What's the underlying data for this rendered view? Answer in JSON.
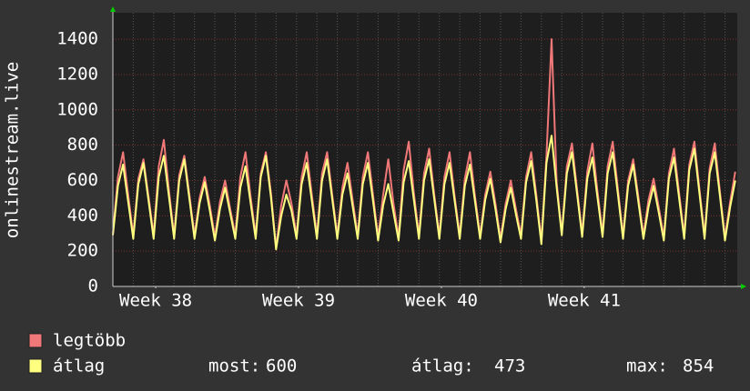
{
  "chart_data": {
    "type": "line",
    "y_label": "onlinestream.live",
    "xlim": [
      0,
      30.6
    ],
    "xticks": [
      {
        "value": 2.1,
        "label": "Week 38"
      },
      {
        "value": 9.1,
        "label": "Week 39"
      },
      {
        "value": 16.1,
        "label": "Week 40"
      },
      {
        "value": 23.1,
        "label": "Week 41"
      }
    ],
    "ylim": [
      0,
      1550
    ],
    "yticks": [
      0,
      200,
      400,
      600,
      800,
      1000,
      1200,
      1400
    ],
    "grid": true,
    "x": [
      0,
      0.25,
      0.5,
      0.75,
      1,
      1.25,
      1.5,
      1.75,
      2,
      2.25,
      2.5,
      2.75,
      3,
      3.25,
      3.5,
      3.75,
      4,
      4.25,
      4.5,
      4.75,
      5,
      5.25,
      5.5,
      5.75,
      6,
      6.25,
      6.5,
      6.75,
      7,
      7.25,
      7.5,
      7.75,
      8,
      8.25,
      8.5,
      8.75,
      9,
      9.25,
      9.5,
      9.75,
      10,
      10.25,
      10.5,
      10.75,
      11,
      11.25,
      11.5,
      11.75,
      12,
      12.25,
      12.5,
      12.75,
      13,
      13.25,
      13.5,
      13.75,
      14,
      14.25,
      14.5,
      14.75,
      15,
      15.25,
      15.5,
      15.75,
      16,
      16.25,
      16.5,
      16.75,
      17,
      17.25,
      17.5,
      17.75,
      18,
      18.25,
      18.5,
      18.75,
      19,
      19.25,
      19.5,
      19.75,
      20,
      20.25,
      20.5,
      20.75,
      21,
      21.25,
      21.5,
      21.75,
      22,
      22.25,
      22.5,
      22.75,
      23,
      23.25,
      23.5,
      23.75,
      24,
      24.25,
      24.5,
      24.75,
      25,
      25.25,
      25.5,
      25.75,
      26,
      26.25,
      26.5,
      26.75,
      27,
      27.25,
      27.5,
      27.75,
      28,
      28.25,
      28.5,
      28.75,
      29,
      29.25,
      29.5,
      29.75,
      30,
      30.25,
      30.5
    ],
    "series": [
      {
        "name": "legtöbb",
        "color": "#f07878",
        "values": [
          300,
          620,
          760,
          520,
          290,
          610,
          720,
          510,
          290,
          680,
          830,
          540,
          290,
          630,
          740,
          520,
          290,
          500,
          620,
          460,
          280,
          480,
          600,
          440,
          290,
          620,
          760,
          510,
          290,
          640,
          760,
          530,
          220,
          460,
          600,
          470,
          290,
          620,
          760,
          520,
          290,
          640,
          760,
          520,
          290,
          560,
          700,
          490,
          290,
          620,
          760,
          520,
          280,
          520,
          720,
          470,
          280,
          660,
          820,
          530,
          290,
          640,
          780,
          520,
          290,
          620,
          760,
          510,
          290,
          610,
          760,
          510,
          290,
          520,
          650,
          470,
          270,
          470,
          600,
          440,
          290,
          620,
          760,
          520,
          260,
          740,
          1400,
          590,
          300,
          680,
          810,
          550,
          300,
          650,
          810,
          540,
          300,
          680,
          820,
          550,
          290,
          600,
          720,
          510,
          290,
          490,
          610,
          450,
          280,
          640,
          780,
          530,
          290,
          690,
          820,
          550,
          290,
          670,
          810,
          540,
          280,
          480,
          650
        ]
      },
      {
        "name": "átlag",
        "color": "#ffff80",
        "values": [
          290,
          570,
          690,
          480,
          270,
          580,
          700,
          485,
          270,
          620,
          740,
          505,
          270,
          600,
          720,
          495,
          270,
          470,
          590,
          430,
          260,
          440,
          560,
          415,
          270,
          560,
          680,
          475,
          270,
          620,
          740,
          505,
          210,
          400,
          520,
          430,
          270,
          580,
          700,
          485,
          270,
          600,
          720,
          495,
          270,
          520,
          640,
          455,
          270,
          580,
          700,
          485,
          260,
          460,
          580,
          420,
          260,
          590,
          710,
          490,
          270,
          600,
          720,
          495,
          270,
          580,
          700,
          485,
          270,
          570,
          690,
          480,
          270,
          490,
          610,
          440,
          250,
          440,
          560,
          410,
          270,
          590,
          710,
          490,
          240,
          700,
          854,
          560,
          290,
          640,
          760,
          525,
          280,
          610,
          730,
          505,
          280,
          640,
          760,
          520,
          270,
          570,
          690,
          480,
          270,
          450,
          570,
          420,
          260,
          610,
          730,
          500,
          270,
          660,
          780,
          525,
          270,
          640,
          760,
          515,
          260,
          450,
          600
        ]
      }
    ],
    "stats": [
      {
        "label": "most:",
        "value": 600
      },
      {
        "label": "átlag:",
        "value": 473
      },
      {
        "label": "max:",
        "value": 854
      }
    ]
  }
}
